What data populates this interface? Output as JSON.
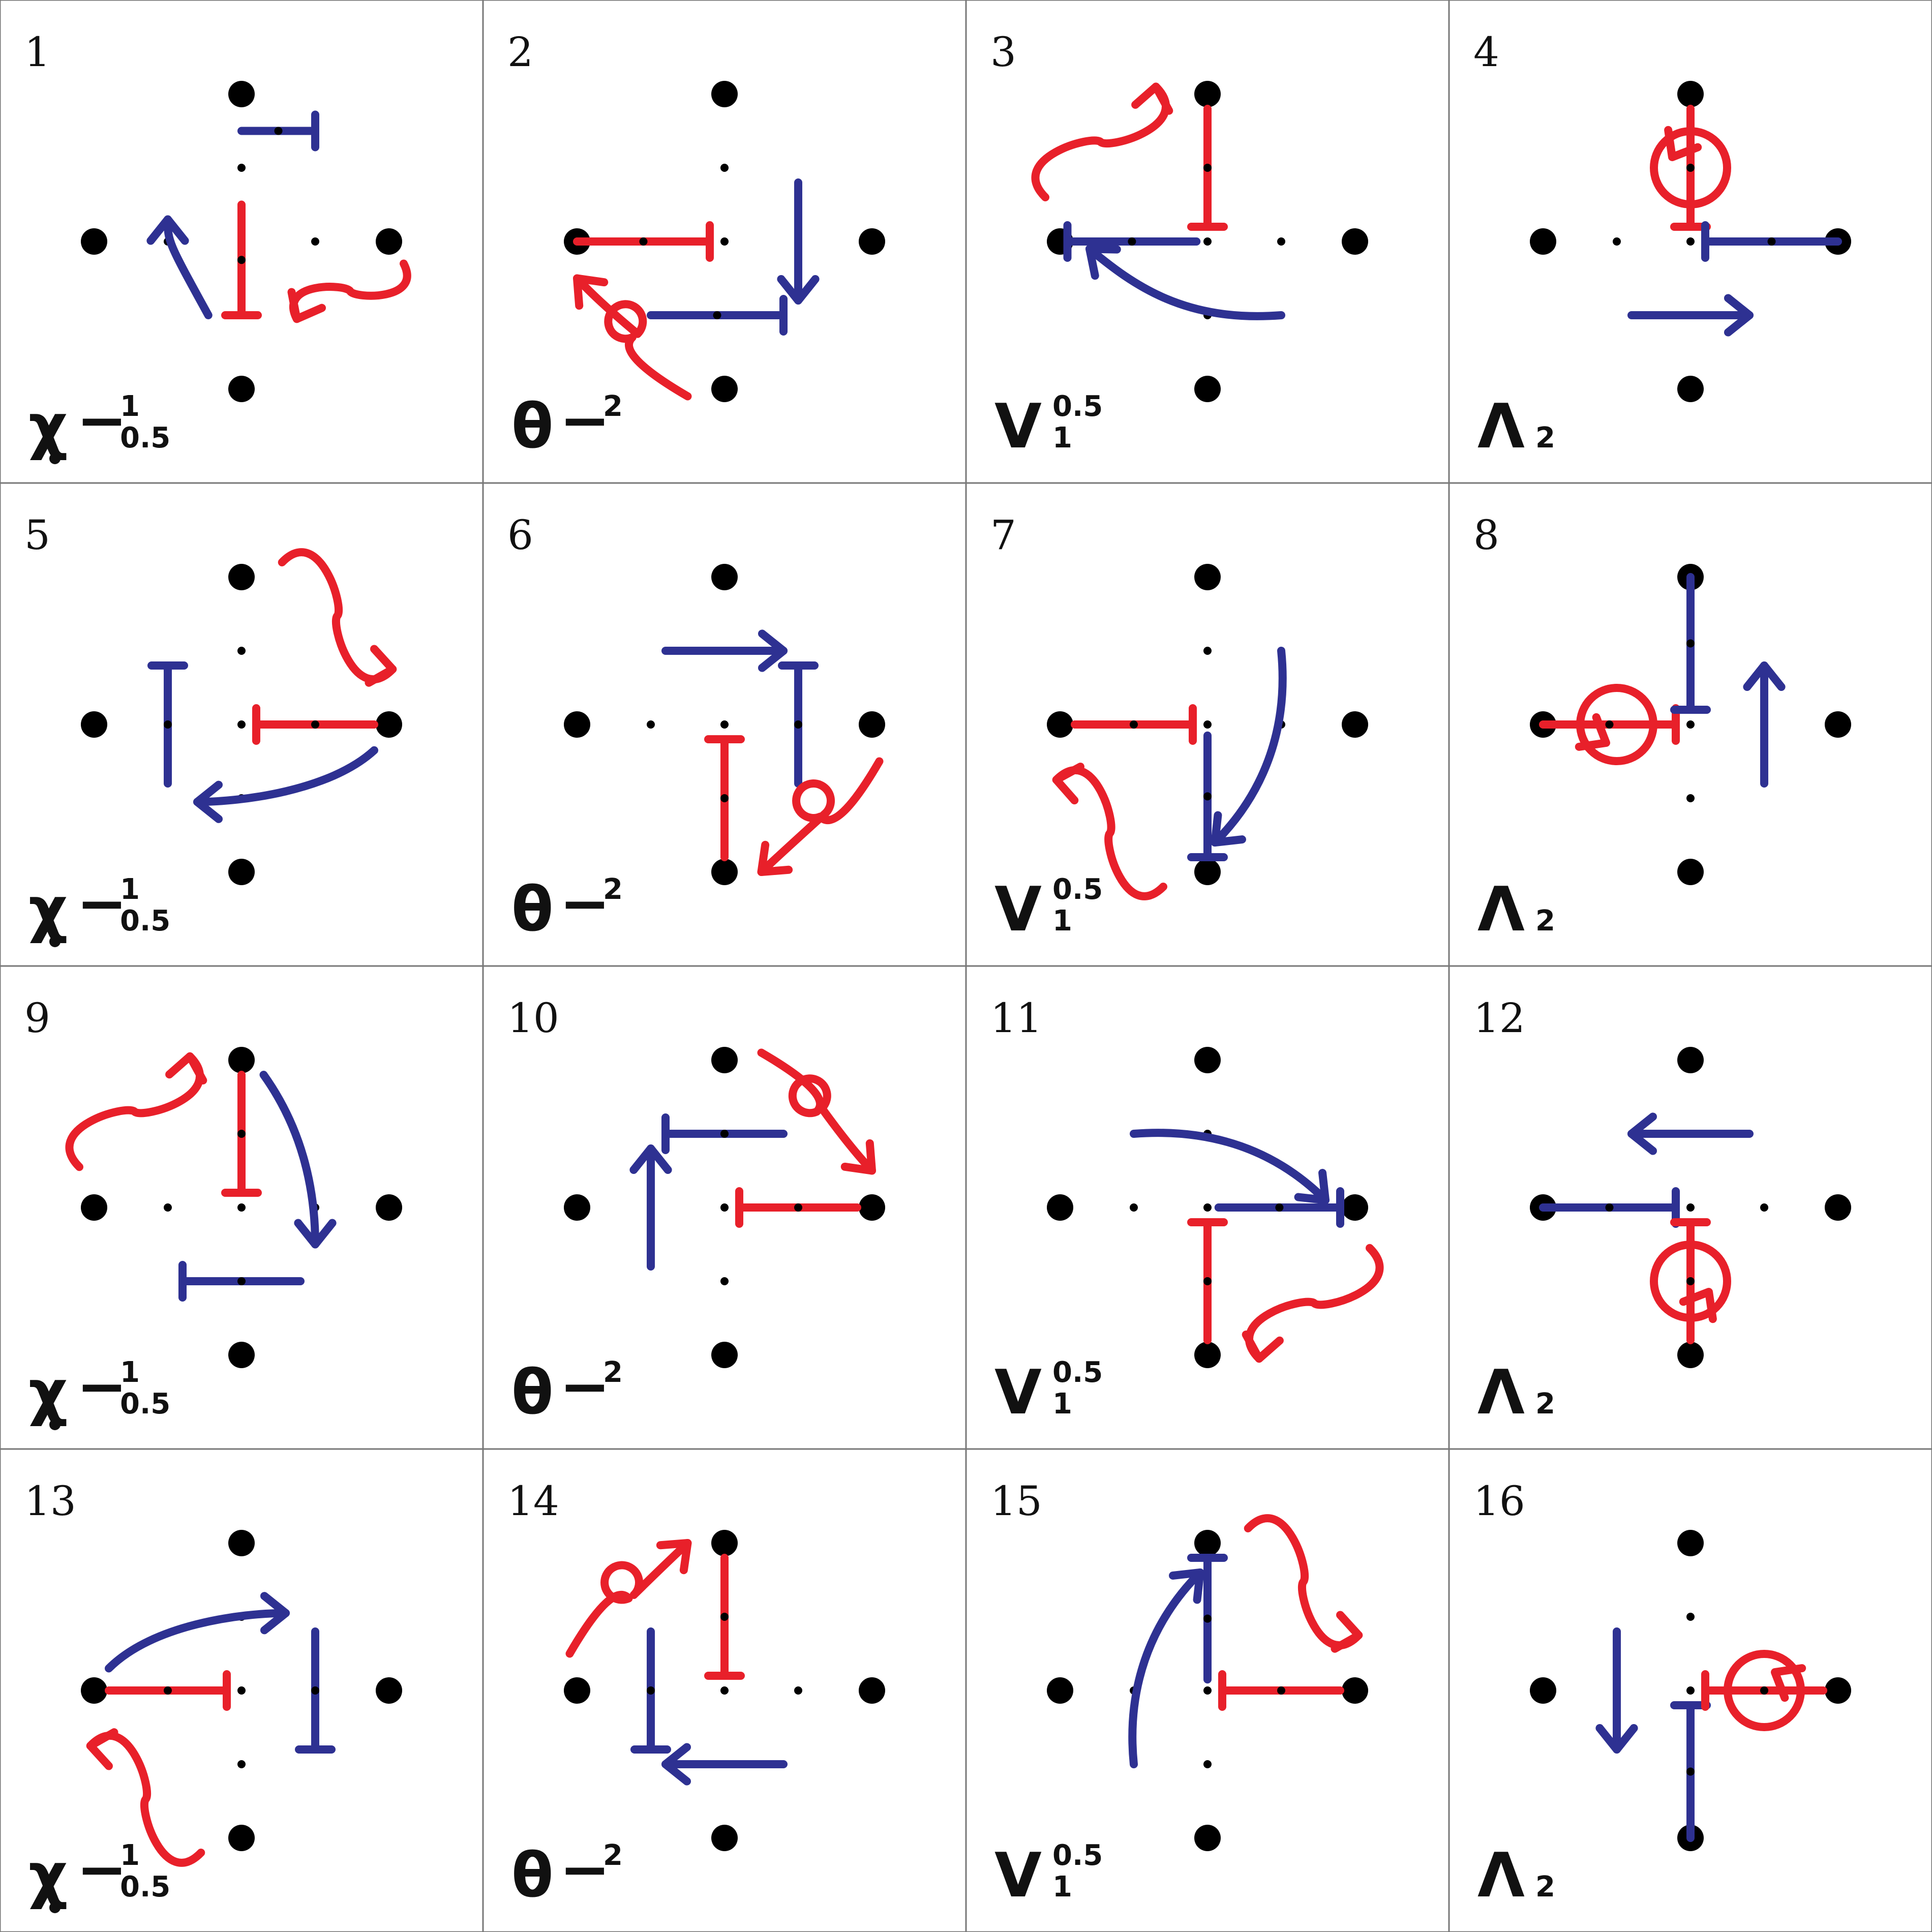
{
  "colors": {
    "red": "#e8202a",
    "blue": "#2e3192",
    "dot": "#000000",
    "grid_line": "#777777",
    "background": "#ffffff"
  },
  "symbols": {
    "chi": {
      "name": "chi-symbol-icon",
      "main": "χ",
      "dash": "−",
      "sup": "1",
      "sub": "0.5"
    },
    "theta": {
      "name": "theta-symbol-icon",
      "main": "θ",
      "dash": "−",
      "sup": "2"
    },
    "upsilon": {
      "name": "upsilon-symbol-icon",
      "main": "V",
      "sup": "0.5",
      "sub": "1"
    },
    "lambda": {
      "name": "lambda-symbol-icon",
      "main": "Λ",
      "sub": "2"
    }
  },
  "cells": [
    {
      "number": "1",
      "symbol": "chi",
      "elements": [
        {
          "type": "bar",
          "name": "blue-tbar",
          "color": "blue",
          "from": [
            0,
            1.5
          ],
          "to": [
            1,
            1.5
          ],
          "cap": "end",
          "mid": true
        },
        {
          "type": "bar",
          "name": "red-tbar",
          "color": "red",
          "from": [
            0,
            0.5
          ],
          "to": [
            0,
            -1
          ],
          "cap": "end",
          "mid": true
        },
        {
          "type": "curve",
          "name": "blue-curved-arrow",
          "color": "blue",
          "d": [
            [
              -0.45,
              -1
            ],
            [
              -1,
              0
            ],
            [
              -1,
              0
            ],
            [
              -1,
              0.3
            ]
          ],
          "head": true
        },
        {
          "type": "wavy",
          "name": "red-wavy-arrow",
          "color": "red",
          "from": [
            2.2,
            -0.3
          ],
          "to": [
            0.75,
            -1.05
          ]
        }
      ]
    },
    {
      "number": "2",
      "symbol": "theta",
      "elements": [
        {
          "type": "bar",
          "name": "red-tbar",
          "color": "red",
          "from": [
            -2,
            0
          ],
          "to": [
            -0.2,
            0
          ],
          "cap": "end",
          "mid": true
        },
        {
          "type": "bar",
          "name": "blue-tbar",
          "color": "blue",
          "from": [
            -1,
            -1
          ],
          "to": [
            0.8,
            -1
          ],
          "cap": "end",
          "mid": true
        },
        {
          "type": "arrow",
          "name": "blue-straight-arrow",
          "color": "blue",
          "from": [
            1,
            0.8
          ],
          "to": [
            1,
            -0.8
          ]
        },
        {
          "type": "loop",
          "name": "red-loop-arrow",
          "color": "red",
          "from": [
            -0.5,
            -2.1
          ],
          "to": [
            -2,
            -0.5
          ]
        }
      ]
    },
    {
      "number": "3",
      "symbol": "upsilon",
      "elements": [
        {
          "type": "bar",
          "name": "red-tbar",
          "color": "red",
          "from": [
            0,
            1.8
          ],
          "to": [
            0,
            0.2
          ],
          "cap": "end",
          "mid": true
        },
        {
          "type": "bar",
          "name": "blue-tbar",
          "color": "blue",
          "from": [
            -0.15,
            0
          ],
          "to": [
            -1.9,
            0
          ],
          "cap": "end",
          "mid": true
        },
        {
          "type": "curve",
          "name": "blue-curved-arrow",
          "color": "blue",
          "d": [
            [
              1,
              -1
            ],
            [
              -0.3,
              -1.1
            ],
            [
              -1,
              -0.6
            ],
            [
              -1.6,
              -0.1
            ]
          ],
          "head": true
        },
        {
          "type": "wavy",
          "name": "red-wavy-arrow",
          "color": "red",
          "from": [
            -2.2,
            0.6
          ],
          "to": [
            -0.7,
            2.1
          ]
        }
      ]
    },
    {
      "number": "4",
      "symbol": "lambda",
      "elements": [
        {
          "type": "bar",
          "name": "red-tbar",
          "color": "red",
          "from": [
            0,
            1.8
          ],
          "to": [
            0,
            0.2
          ],
          "cap": "end",
          "mid": true
        },
        {
          "type": "spin",
          "name": "red-spin-arrow",
          "color": "red",
          "c": [
            0,
            1
          ],
          "dir": "up"
        },
        {
          "type": "bar",
          "name": "blue-tbar",
          "color": "blue",
          "from": [
            2,
            0
          ],
          "to": [
            0.2,
            0
          ],
          "cap": "end",
          "mid": true
        },
        {
          "type": "arrow",
          "name": "blue-straight-arrow",
          "color": "blue",
          "from": [
            -0.8,
            -1
          ],
          "to": [
            0.8,
            -1
          ]
        }
      ]
    },
    {
      "number": "5",
      "symbol": "chi",
      "elements": [
        {
          "type": "bar",
          "name": "blue-tbar",
          "color": "blue",
          "from": [
            -1,
            -0.8
          ],
          "to": [
            -1,
            0.8
          ],
          "cap": "end",
          "mid": true
        },
        {
          "type": "bar",
          "name": "red-tbar",
          "color": "red",
          "from": [
            1.8,
            0
          ],
          "to": [
            0.2,
            0
          ],
          "cap": "end",
          "mid": true
        },
        {
          "type": "curve",
          "name": "blue-curved-arrow",
          "color": "blue",
          "d": [
            [
              1.8,
              -0.35
            ],
            [
              1.2,
              -0.9
            ],
            [
              0,
              -1.05
            ],
            [
              -0.6,
              -1.05
            ]
          ],
          "head": true
        },
        {
          "type": "wavy",
          "name": "red-wavy-arrow",
          "color": "red",
          "from": [
            0.55,
            2.2
          ],
          "to": [
            2.05,
            0.75
          ]
        }
      ]
    },
    {
      "number": "6",
      "symbol": "theta",
      "elements": [
        {
          "type": "arrow",
          "name": "blue-straight-arrow",
          "color": "blue",
          "from": [
            -0.8,
            1
          ],
          "to": [
            0.8,
            1
          ]
        },
        {
          "type": "bar",
          "name": "blue-tbar",
          "color": "blue",
          "from": [
            1,
            -0.8
          ],
          "to": [
            1,
            0.8
          ],
          "cap": "end",
          "mid": true
        },
        {
          "type": "bar",
          "name": "red-tbar",
          "color": "red",
          "from": [
            0,
            -1.8
          ],
          "to": [
            0,
            -0.2
          ],
          "cap": "end",
          "mid": true
        },
        {
          "type": "loop",
          "name": "red-loop-arrow",
          "color": "red",
          "from": [
            2.1,
            -0.5
          ],
          "to": [
            0.5,
            -2
          ]
        }
      ]
    },
    {
      "number": "7",
      "symbol": "upsilon",
      "elements": [
        {
          "type": "bar",
          "name": "red-tbar",
          "color": "red",
          "from": [
            -1.8,
            0
          ],
          "to": [
            -0.2,
            0
          ],
          "cap": "end",
          "mid": true
        },
        {
          "type": "bar",
          "name": "blue-tbar",
          "color": "blue",
          "from": [
            0,
            -0.15
          ],
          "to": [
            0,
            -1.8
          ],
          "cap": "end",
          "mid": true
        },
        {
          "type": "curve",
          "name": "blue-curved-arrow",
          "color": "blue",
          "d": [
            [
              1,
              1
            ],
            [
              1.1,
              0
            ],
            [
              0.8,
              -0.9
            ],
            [
              0.1,
              -1.6
            ]
          ],
          "head": true
        },
        {
          "type": "wavy",
          "name": "red-wavy-arrow",
          "color": "red",
          "from": [
            -0.6,
            -2.2
          ],
          "to": [
            -2.05,
            -0.75
          ]
        }
      ]
    },
    {
      "number": "8",
      "symbol": "lambda",
      "elements": [
        {
          "type": "bar",
          "name": "red-tbar",
          "color": "red",
          "from": [
            -2,
            0
          ],
          "to": [
            -0.2,
            0
          ],
          "cap": "end",
          "mid": true
        },
        {
          "type": "spin",
          "name": "red-spin-arrow",
          "color": "red",
          "c": [
            -1,
            0
          ],
          "dir": "left"
        },
        {
          "type": "bar",
          "name": "blue-tbar",
          "color": "blue",
          "from": [
            0,
            2
          ],
          "to": [
            0,
            0.2
          ],
          "cap": "end",
          "mid": true
        },
        {
          "type": "arrow",
          "name": "blue-straight-arrow",
          "color": "blue",
          "from": [
            1,
            -0.8
          ],
          "to": [
            1,
            0.8
          ]
        }
      ]
    },
    {
      "number": "9",
      "symbol": "chi",
      "elements": [
        {
          "type": "bar",
          "name": "red-tbar",
          "color": "red",
          "from": [
            0,
            1.8
          ],
          "to": [
            0,
            0.2
          ],
          "cap": "end",
          "mid": true
        },
        {
          "type": "bar",
          "name": "blue-tbar",
          "color": "blue",
          "from": [
            0.8,
            -1
          ],
          "to": [
            -0.8,
            -1
          ],
          "cap": "end",
          "mid": true
        },
        {
          "type": "curve",
          "name": "blue-curved-arrow",
          "color": "blue",
          "d": [
            [
              0.3,
              1.8
            ],
            [
              0.8,
              1.1
            ],
            [
              1,
              0.3
            ],
            [
              1,
              -0.5
            ]
          ],
          "head": true
        },
        {
          "type": "wavy",
          "name": "red-wavy-arrow",
          "color": "red",
          "from": [
            -2.2,
            0.55
          ],
          "to": [
            -0.7,
            2.05
          ]
        }
      ]
    },
    {
      "number": "10",
      "symbol": "theta",
      "elements": [
        {
          "type": "bar",
          "name": "blue-tbar",
          "color": "blue",
          "from": [
            0.8,
            1
          ],
          "to": [
            -0.8,
            1
          ],
          "cap": "end",
          "mid": true
        },
        {
          "type": "arrow",
          "name": "blue-straight-arrow",
          "color": "blue",
          "from": [
            -1,
            -0.8
          ],
          "to": [
            -1,
            0.8
          ]
        },
        {
          "type": "bar",
          "name": "red-tbar",
          "color": "red",
          "from": [
            1.8,
            0
          ],
          "to": [
            0.2,
            0
          ],
          "cap": "end",
          "mid": true
        },
        {
          "type": "loop",
          "name": "red-loop-arrow",
          "color": "red",
          "from": [
            0.5,
            2.1
          ],
          "to": [
            2,
            0.5
          ]
        }
      ]
    },
    {
      "number": "11",
      "symbol": "upsilon",
      "elements": [
        {
          "type": "bar",
          "name": "blue-tbar",
          "color": "blue",
          "from": [
            0.15,
            0
          ],
          "to": [
            1.8,
            0
          ],
          "cap": "end",
          "mid": true
        },
        {
          "type": "bar",
          "name": "red-tbar",
          "color": "red",
          "from": [
            0,
            -1.8
          ],
          "to": [
            0,
            -0.2
          ],
          "cap": "end",
          "mid": true
        },
        {
          "type": "curve",
          "name": "blue-curved-arrow",
          "color": "blue",
          "d": [
            [
              -1,
              1
            ],
            [
              0.3,
              1.1
            ],
            [
              1.1,
              0.6
            ],
            [
              1.6,
              0.1
            ]
          ],
          "head": true
        },
        {
          "type": "wavy",
          "name": "red-wavy-arrow",
          "color": "red",
          "from": [
            2.2,
            -0.55
          ],
          "to": [
            0.7,
            -2.05
          ]
        }
      ]
    },
    {
      "number": "12",
      "symbol": "lambda",
      "elements": [
        {
          "type": "arrow",
          "name": "blue-straight-arrow",
          "color": "blue",
          "from": [
            0.8,
            1
          ],
          "to": [
            -0.8,
            1
          ]
        },
        {
          "type": "bar",
          "name": "blue-tbar",
          "color": "blue",
          "from": [
            -2,
            0
          ],
          "to": [
            -0.2,
            0
          ],
          "cap": "end",
          "mid": true
        },
        {
          "type": "bar",
          "name": "red-tbar",
          "color": "red",
          "from": [
            0,
            -1.8
          ],
          "to": [
            0,
            -0.2
          ],
          "cap": "end",
          "mid": true
        },
        {
          "type": "spin",
          "name": "red-spin-arrow",
          "color": "red",
          "c": [
            0,
            -1
          ],
          "dir": "down"
        }
      ]
    },
    {
      "number": "13",
      "symbol": "chi",
      "elements": [
        {
          "type": "bar",
          "name": "red-tbar",
          "color": "red",
          "from": [
            -1.8,
            0
          ],
          "to": [
            -0.2,
            0
          ],
          "cap": "end",
          "mid": true
        },
        {
          "type": "bar",
          "name": "blue-tbar",
          "color": "blue",
          "from": [
            1,
            0.8
          ],
          "to": [
            1,
            -0.8
          ],
          "cap": "end",
          "mid": true
        },
        {
          "type": "curve",
          "name": "blue-curved-arrow",
          "color": "blue",
          "d": [
            [
              -1.8,
              0.3
            ],
            [
              -1.2,
              0.9
            ],
            [
              0,
              1.05
            ],
            [
              0.6,
              1.05
            ]
          ],
          "head": true
        },
        {
          "type": "wavy",
          "name": "red-wavy-arrow",
          "color": "red",
          "from": [
            -0.55,
            -2.2
          ],
          "to": [
            -2.05,
            -0.75
          ]
        }
      ]
    },
    {
      "number": "14",
      "symbol": "theta",
      "elements": [
        {
          "type": "bar",
          "name": "red-tbar",
          "color": "red",
          "from": [
            0,
            1.8
          ],
          "to": [
            0,
            0.2
          ],
          "cap": "end",
          "mid": true
        },
        {
          "type": "bar",
          "name": "blue-tbar",
          "color": "blue",
          "from": [
            -1,
            0.8
          ],
          "to": [
            -1,
            -0.8
          ],
          "cap": "end",
          "mid": true
        },
        {
          "type": "arrow",
          "name": "blue-straight-arrow",
          "color": "blue",
          "from": [
            0.8,
            -1
          ],
          "to": [
            -0.8,
            -1
          ]
        },
        {
          "type": "loop",
          "name": "red-loop-arrow",
          "color": "red",
          "from": [
            -2.1,
            0.5
          ],
          "to": [
            -0.5,
            2
          ]
        }
      ]
    },
    {
      "number": "15",
      "symbol": "upsilon",
      "elements": [
        {
          "type": "bar",
          "name": "blue-tbar",
          "color": "blue",
          "from": [
            0,
            0.15
          ],
          "to": [
            0,
            1.8
          ],
          "cap": "end",
          "mid": true
        },
        {
          "type": "bar",
          "name": "red-tbar",
          "color": "red",
          "from": [
            1.8,
            0
          ],
          "to": [
            0.2,
            0
          ],
          "cap": "end",
          "mid": true
        },
        {
          "type": "curve",
          "name": "blue-curved-arrow",
          "color": "blue",
          "d": [
            [
              -1,
              -1
            ],
            [
              -1.1,
              0
            ],
            [
              -0.8,
              0.9
            ],
            [
              -0.1,
              1.6
            ]
          ],
          "head": true
        },
        {
          "type": "wavy",
          "name": "red-wavy-arrow",
          "color": "red",
          "from": [
            0.55,
            2.2
          ],
          "to": [
            2.05,
            0.75
          ]
        }
      ]
    },
    {
      "number": "16",
      "symbol": "lambda",
      "elements": [
        {
          "type": "arrow",
          "name": "blue-straight-arrow",
          "color": "blue",
          "from": [
            -1,
            0.8
          ],
          "to": [
            -1,
            -0.8
          ]
        },
        {
          "type": "bar",
          "name": "blue-tbar",
          "color": "blue",
          "from": [
            0,
            -2
          ],
          "to": [
            0,
            -0.2
          ],
          "cap": "end",
          "mid": true
        },
        {
          "type": "bar",
          "name": "red-tbar",
          "color": "red",
          "from": [
            1.8,
            0
          ],
          "to": [
            0.2,
            0
          ],
          "cap": "end",
          "mid": true
        },
        {
          "type": "spin",
          "name": "red-spin-arrow",
          "color": "red",
          "c": [
            1,
            0
          ],
          "dir": "right"
        }
      ]
    }
  ]
}
